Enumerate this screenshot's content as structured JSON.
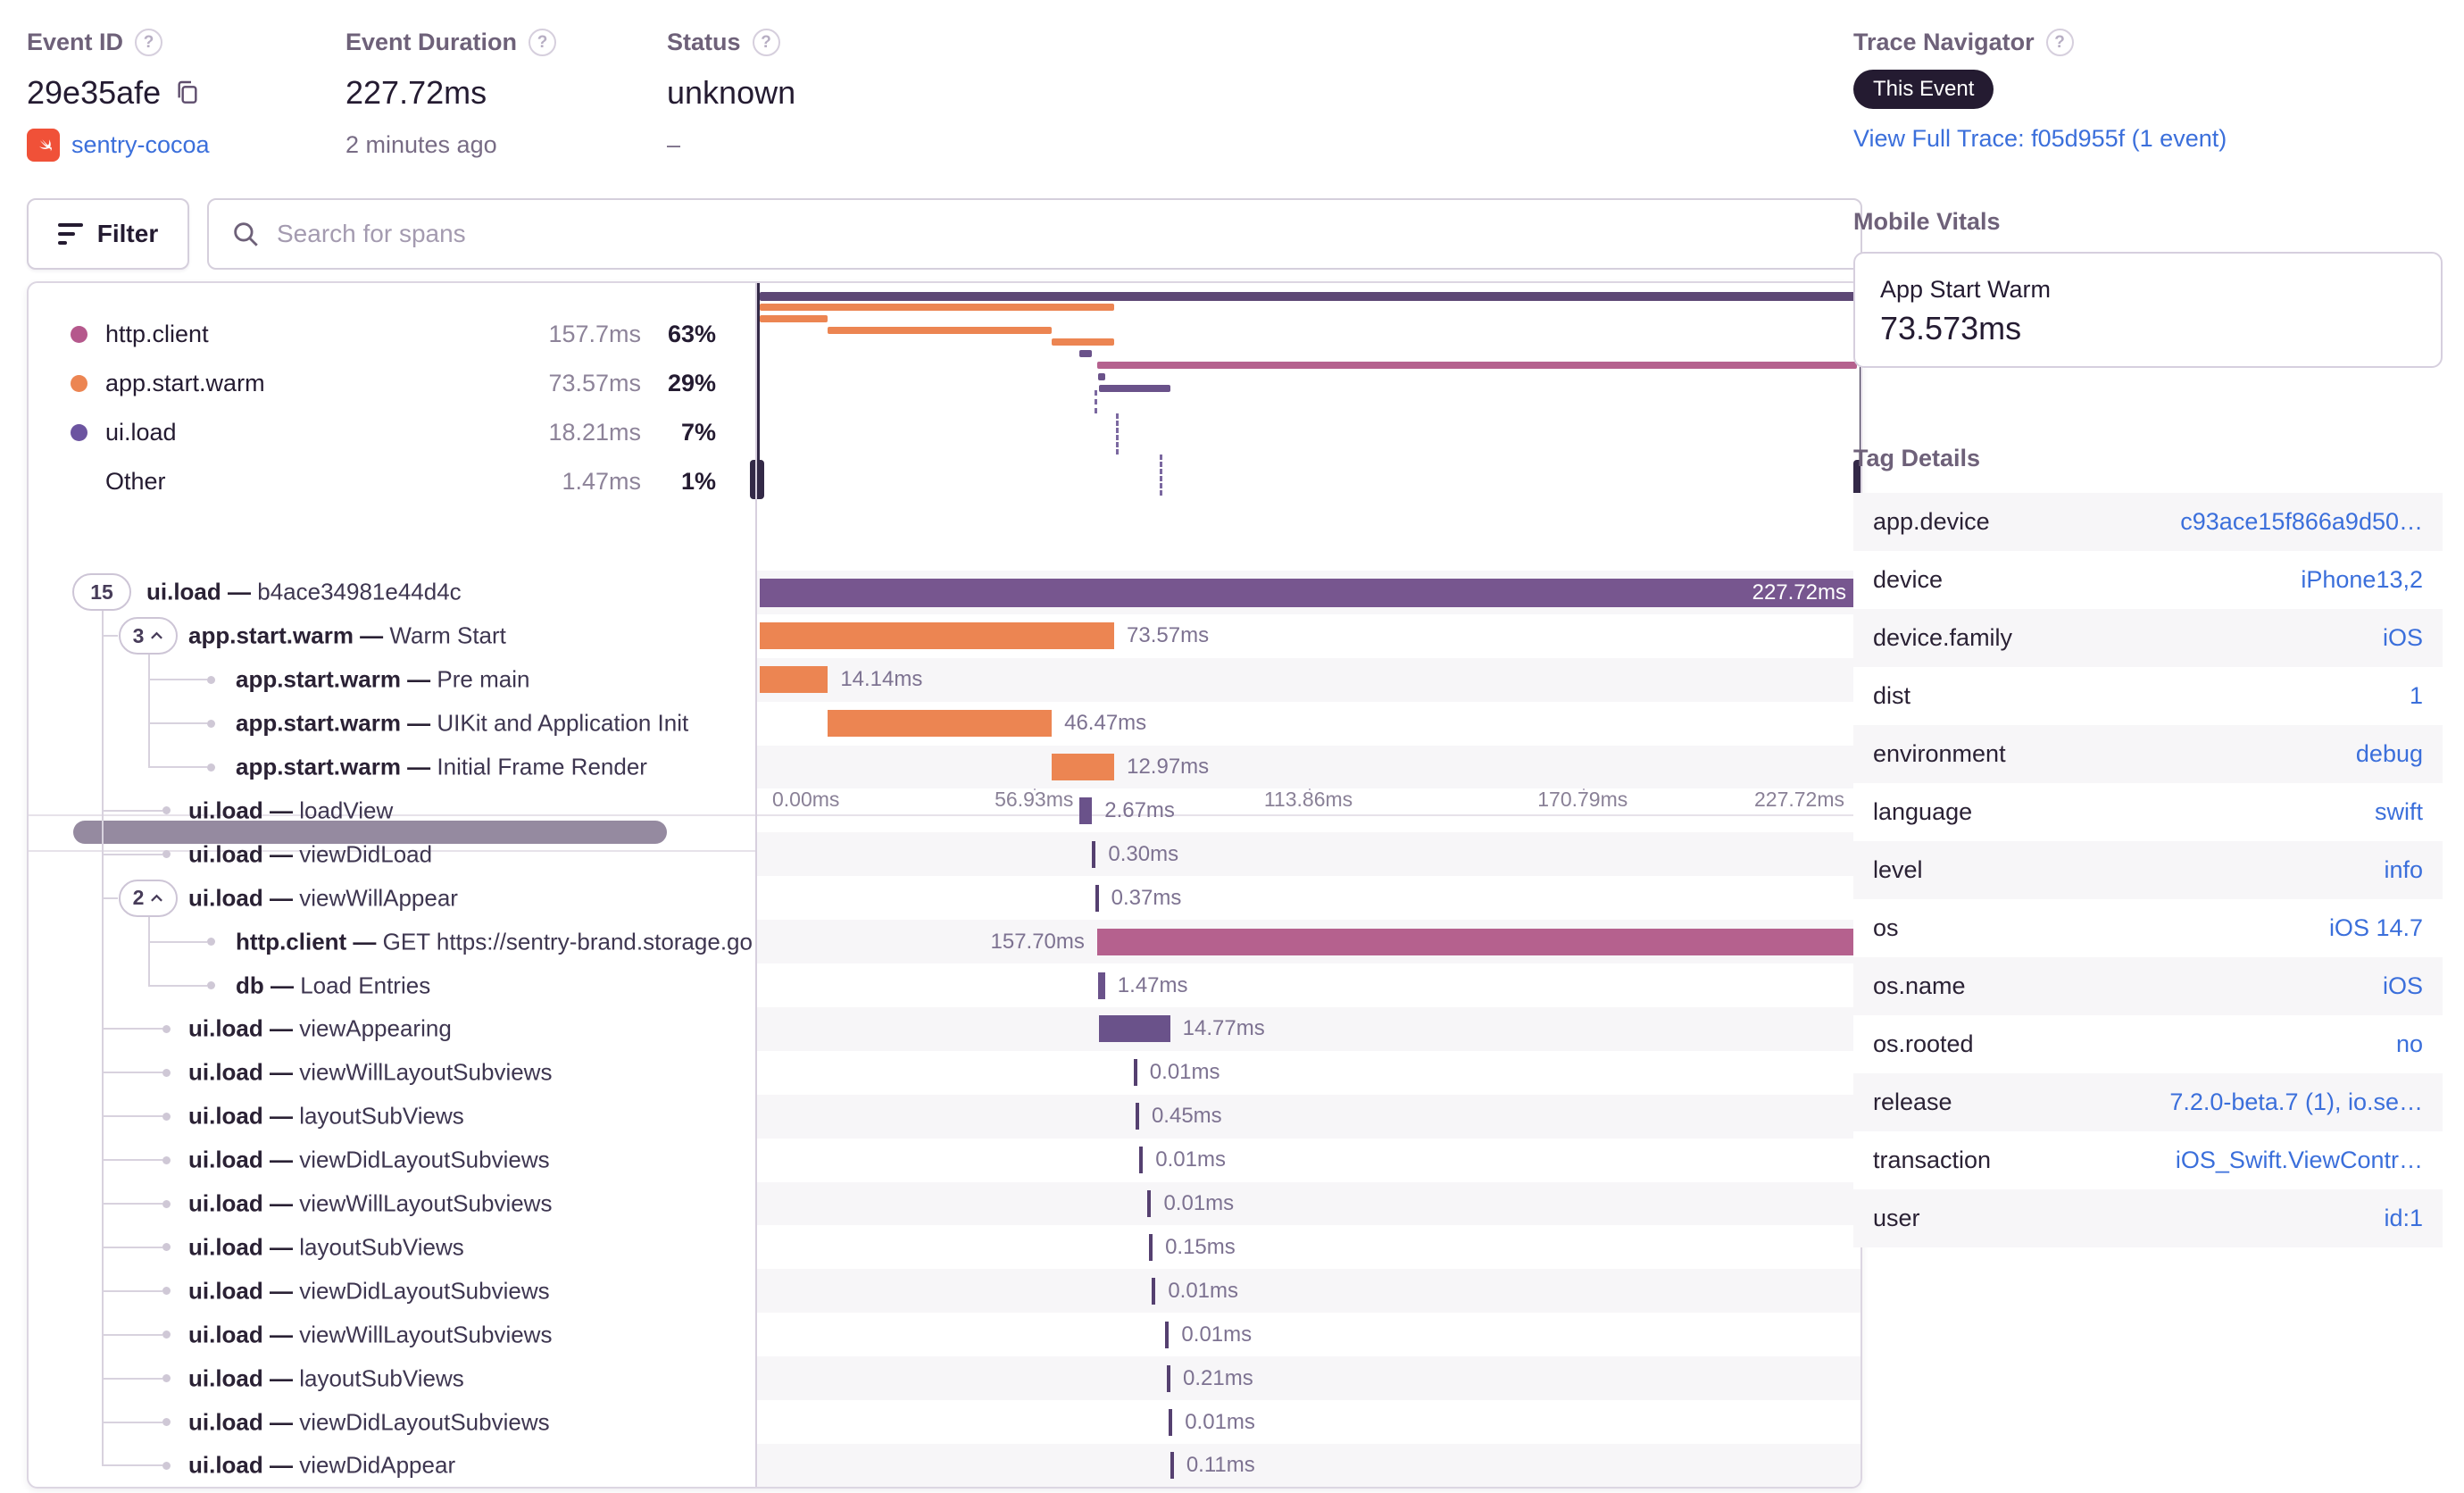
{
  "header": {
    "event_id": {
      "label": "Event ID",
      "value": "29e35afe",
      "project": "sentry-cocoa"
    },
    "event_duration": {
      "label": "Event Duration",
      "value": "227.72ms",
      "sub": "2 minutes ago"
    },
    "status": {
      "label": "Status",
      "value": "unknown",
      "sub": "–"
    },
    "trace_navigator": {
      "label": "Trace Navigator",
      "badge": "This Event",
      "link": "View Full Trace: f05d955f (1 event)"
    }
  },
  "controls": {
    "filter_label": "Filter",
    "search_placeholder": "Search for spans"
  },
  "legend": {
    "items": [
      {
        "name": "http.client",
        "duration": "157.7ms",
        "percent": "63%",
        "color": "#b5588c"
      },
      {
        "name": "app.start.warm",
        "duration": "73.57ms",
        "percent": "29%",
        "color": "#ec8552"
      },
      {
        "name": "ui.load",
        "duration": "18.21ms",
        "percent": "7%",
        "color": "#6c54a0"
      },
      {
        "name": "Other",
        "duration": "1.47ms",
        "percent": "1%",
        "color": null
      }
    ]
  },
  "timeline": {
    "total_ms": 227.72,
    "axis_labels": [
      "0.00ms",
      "56.93ms",
      "113.86ms",
      "170.79ms",
      "227.72ms"
    ]
  },
  "spans": [
    {
      "level": 0,
      "pill": "15",
      "chevron": false,
      "op": "ui.load",
      "desc": "b4ace34981e44d4c",
      "start": 0,
      "dur": 227.72,
      "label": "227.72ms",
      "cat": "transaction",
      "label_pos": "inside"
    },
    {
      "level": 1,
      "pill": "3",
      "chevron": true,
      "op": "app.start.warm",
      "desc": "Warm Start",
      "start": 0,
      "dur": 73.57,
      "label": "73.57ms",
      "cat": "app_start"
    },
    {
      "level": 2,
      "op": "app.start.warm",
      "desc": "Pre main",
      "start": 0,
      "dur": 14.14,
      "label": "14.14ms",
      "cat": "app_start"
    },
    {
      "level": 2,
      "op": "app.start.warm",
      "desc": "UIKit and Application Init",
      "start": 14.14,
      "dur": 46.47,
      "label": "46.47ms",
      "cat": "app_start"
    },
    {
      "level": 2,
      "op": "app.start.warm",
      "desc": "Initial Frame Render",
      "start": 60.61,
      "dur": 12.97,
      "label": "12.97ms",
      "cat": "app_start"
    },
    {
      "level": 1,
      "op": "ui.load",
      "desc": "loadView",
      "start": 66.3,
      "dur": 2.67,
      "label": "2.67ms",
      "cat": "ui_load"
    },
    {
      "level": 1,
      "op": "ui.load",
      "desc": "viewDidLoad",
      "start": 69.0,
      "dur": 0.3,
      "label": "0.30ms",
      "cat": "ui_load"
    },
    {
      "level": 1,
      "pill": "2",
      "chevron": true,
      "op": "ui.load",
      "desc": "viewWillAppear",
      "start": 69.6,
      "dur": 0.37,
      "label": "0.37ms",
      "cat": "ui_load"
    },
    {
      "level": 2,
      "op": "http.client",
      "desc": "GET https://sentry-brand.storage.googlea",
      "start": 70.02,
      "dur": 157.7,
      "label": "157.70ms",
      "cat": "http",
      "label_pos": "left"
    },
    {
      "level": 2,
      "op": "db",
      "desc": "Load Entries",
      "start": 70.2,
      "dur": 1.47,
      "label": "1.47ms",
      "cat": "ui_load"
    },
    {
      "level": 1,
      "op": "ui.load",
      "desc": "viewAppearing",
      "start": 70.4,
      "dur": 14.77,
      "label": "14.77ms",
      "cat": "ui_load"
    },
    {
      "level": 1,
      "op": "ui.load",
      "desc": "viewWillLayoutSubviews",
      "start": 77.6,
      "dur": 0.01,
      "label": "0.01ms",
      "cat": "ui_load"
    },
    {
      "level": 1,
      "op": "ui.load",
      "desc": "layoutSubViews",
      "start": 78.0,
      "dur": 0.45,
      "label": "0.45ms",
      "cat": "ui_load"
    },
    {
      "level": 1,
      "op": "ui.load",
      "desc": "viewDidLayoutSubviews",
      "start": 78.8,
      "dur": 0.01,
      "label": "0.01ms",
      "cat": "ui_load"
    },
    {
      "level": 1,
      "op": "ui.load",
      "desc": "viewWillLayoutSubviews",
      "start": 80.5,
      "dur": 0.01,
      "label": "0.01ms",
      "cat": "ui_load"
    },
    {
      "level": 1,
      "op": "ui.load",
      "desc": "layoutSubViews",
      "start": 80.8,
      "dur": 0.15,
      "label": "0.15ms",
      "cat": "ui_load"
    },
    {
      "level": 1,
      "op": "ui.load",
      "desc": "viewDidLayoutSubviews",
      "start": 81.4,
      "dur": 0.01,
      "label": "0.01ms",
      "cat": "ui_load"
    },
    {
      "level": 1,
      "op": "ui.load",
      "desc": "viewWillLayoutSubviews",
      "start": 84.2,
      "dur": 0.01,
      "label": "0.01ms",
      "cat": "ui_load"
    },
    {
      "level": 1,
      "op": "ui.load",
      "desc": "layoutSubViews",
      "start": 84.5,
      "dur": 0.21,
      "label": "0.21ms",
      "cat": "ui_load"
    },
    {
      "level": 1,
      "op": "ui.load",
      "desc": "viewDidLayoutSubviews",
      "start": 84.9,
      "dur": 0.01,
      "label": "0.01ms",
      "cat": "ui_load"
    },
    {
      "level": 1,
      "op": "ui.load",
      "desc": "viewDidAppear",
      "start": 85.2,
      "dur": 0.11,
      "label": "0.11ms",
      "cat": "ui_load"
    }
  ],
  "sidebar": {
    "mobile_vitals": {
      "title": "Mobile Vitals",
      "card": {
        "name": "App Start Warm",
        "value": "73.573ms"
      }
    },
    "tag_details": {
      "title": "Tag Details",
      "rows": [
        {
          "key": "app.device",
          "value": "c93ace15f866a9d50…"
        },
        {
          "key": "device",
          "value": "iPhone13,2"
        },
        {
          "key": "device.family",
          "value": "iOS"
        },
        {
          "key": "dist",
          "value": "1"
        },
        {
          "key": "environment",
          "value": "debug"
        },
        {
          "key": "language",
          "value": "swift"
        },
        {
          "key": "level",
          "value": "info"
        },
        {
          "key": "os",
          "value": "iOS 14.7"
        },
        {
          "key": "os.name",
          "value": "iOS"
        },
        {
          "key": "os.rooted",
          "value": "no"
        },
        {
          "key": "release",
          "value": "7.2.0-beta.7 (1), io.se…"
        },
        {
          "key": "transaction",
          "value": "iOS_Swift.ViewContr…"
        },
        {
          "key": "user",
          "value": "id:1"
        }
      ]
    }
  },
  "colors": {
    "transaction": "#77568f",
    "app_start": "#ec8552",
    "http": "#b5618e",
    "ui_load": "#6a528a",
    "tick": "#554070",
    "minimap_root": "#5d4875",
    "stripe": "#f7f6f8",
    "link": "#3b6fdb",
    "swift_orange": "#f05138"
  }
}
